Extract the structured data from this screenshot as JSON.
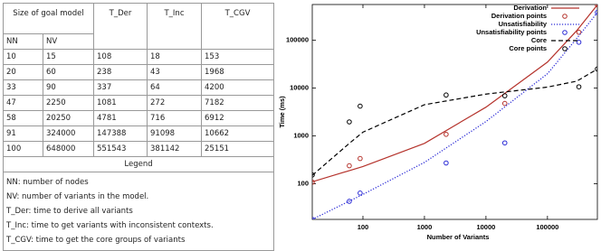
{
  "table": {
    "header": [
      "Size of goal model",
      "T_Der",
      "T_Inc",
      "T_CGV"
    ],
    "subheader": [
      "NN",
      "NV"
    ],
    "rows": [
      [
        10,
        15,
        108,
        18,
        153
      ],
      [
        20,
        60,
        238,
        43,
        1968
      ],
      [
        33,
        90,
        337,
        64,
        4200
      ],
      [
        47,
        2250,
        1081,
        272,
        7182
      ],
      [
        58,
        20250,
        4781,
        716,
        6912
      ],
      [
        91,
        324000,
        147388,
        91098,
        10662
      ],
      [
        100,
        648000,
        551543,
        381142,
        25151
      ]
    ],
    "legend_title": "Legend",
    "legend": [
      "NN: number of nodes",
      "NV: number of variants in the model.",
      "T_Der: time to derive all variants",
      "T_Inc: time to get variants with inconsistent contexts.",
      "T_CGV: time to get the core groups of variants"
    ]
  },
  "chart_data": {
    "type": "line",
    "x_label": "Number of Variants",
    "y_label": "Time (ms)",
    "xscale": "log",
    "yscale": "log",
    "xlim": [
      15,
      648000
    ],
    "ylim": [
      18,
      560000
    ],
    "xticks": [
      100,
      1000,
      10000,
      100000
    ],
    "yticks": [
      100,
      1000,
      10000,
      100000
    ],
    "grid": false,
    "legend": "top",
    "series": [
      {
        "name": "Derivation",
        "color": "#b5332c",
        "style": "solid",
        "x": [
          15,
          100,
          1000,
          10000,
          100000,
          300000,
          648000
        ],
        "values": [
          110,
          230,
          700,
          4000,
          35000,
          160000,
          550000
        ]
      },
      {
        "name": "Derivation points",
        "color": "#b5332c",
        "style": "points",
        "x": [
          15,
          60,
          90,
          2250,
          20250,
          324000,
          648000
        ],
        "values": [
          108,
          238,
          337,
          1081,
          4781,
          147388,
          551543
        ]
      },
      {
        "name": "Unsatisfiability",
        "color": "#2b2bd6",
        "style": "dotted",
        "x": [
          15,
          100,
          1000,
          10000,
          100000,
          300000,
          648000
        ],
        "values": [
          18,
          60,
          280,
          2000,
          20000,
          110000,
          380000
        ]
      },
      {
        "name": "Unsatisfiability points",
        "color": "#2b2bd6",
        "style": "points",
        "x": [
          15,
          60,
          90,
          2250,
          20250,
          324000,
          648000
        ],
        "values": [
          18,
          43,
          64,
          272,
          716,
          91098,
          381142
        ]
      },
      {
        "name": "Core",
        "color": "#000000",
        "style": "dashed",
        "x": [
          15,
          60,
          100,
          1000,
          10000,
          100000,
          300000,
          648000
        ],
        "values": [
          150,
          700,
          1200,
          4500,
          7500,
          10500,
          14000,
          25000
        ]
      },
      {
        "name": "Core points",
        "color": "#000000",
        "style": "points",
        "x": [
          15,
          60,
          90,
          2250,
          20250,
          324000,
          648000
        ],
        "values": [
          153,
          1968,
          4200,
          7182,
          6912,
          10662,
          25151
        ]
      }
    ]
  }
}
